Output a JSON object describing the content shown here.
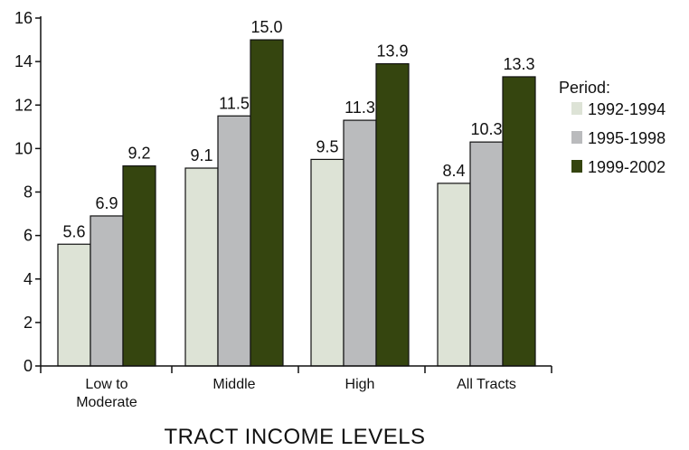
{
  "chart_data": {
    "type": "bar",
    "categories": [
      "Low to\nModerate",
      "Middle",
      "High",
      "All Tracts"
    ],
    "series": [
      {
        "name": "1992-1994",
        "values": [
          5.6,
          9.1,
          9.5,
          8.4
        ],
        "color": "#dde3d6",
        "labels": [
          "5.6",
          "9.1",
          "9.5",
          "8.4"
        ]
      },
      {
        "name": "1995-1998",
        "values": [
          6.9,
          11.5,
          11.3,
          10.3
        ],
        "color": "#babbbd",
        "labels": [
          "6.9",
          "11.5",
          "11.3",
          "10.3"
        ]
      },
      {
        "name": "1999-2002",
        "values": [
          9.2,
          15.0,
          13.9,
          13.3
        ],
        "color": "#35450f",
        "labels": [
          "9.2",
          "15.0",
          "13.9",
          "13.3"
        ]
      }
    ],
    "ylim": [
      0,
      16
    ],
    "yticks": [
      0,
      2,
      4,
      6,
      8,
      10,
      12,
      14,
      16
    ],
    "xlabel": "TRACT INCOME LEVELS",
    "ylabel": "",
    "legend_title": "Period:",
    "legend_position": "right",
    "grid": false
  }
}
